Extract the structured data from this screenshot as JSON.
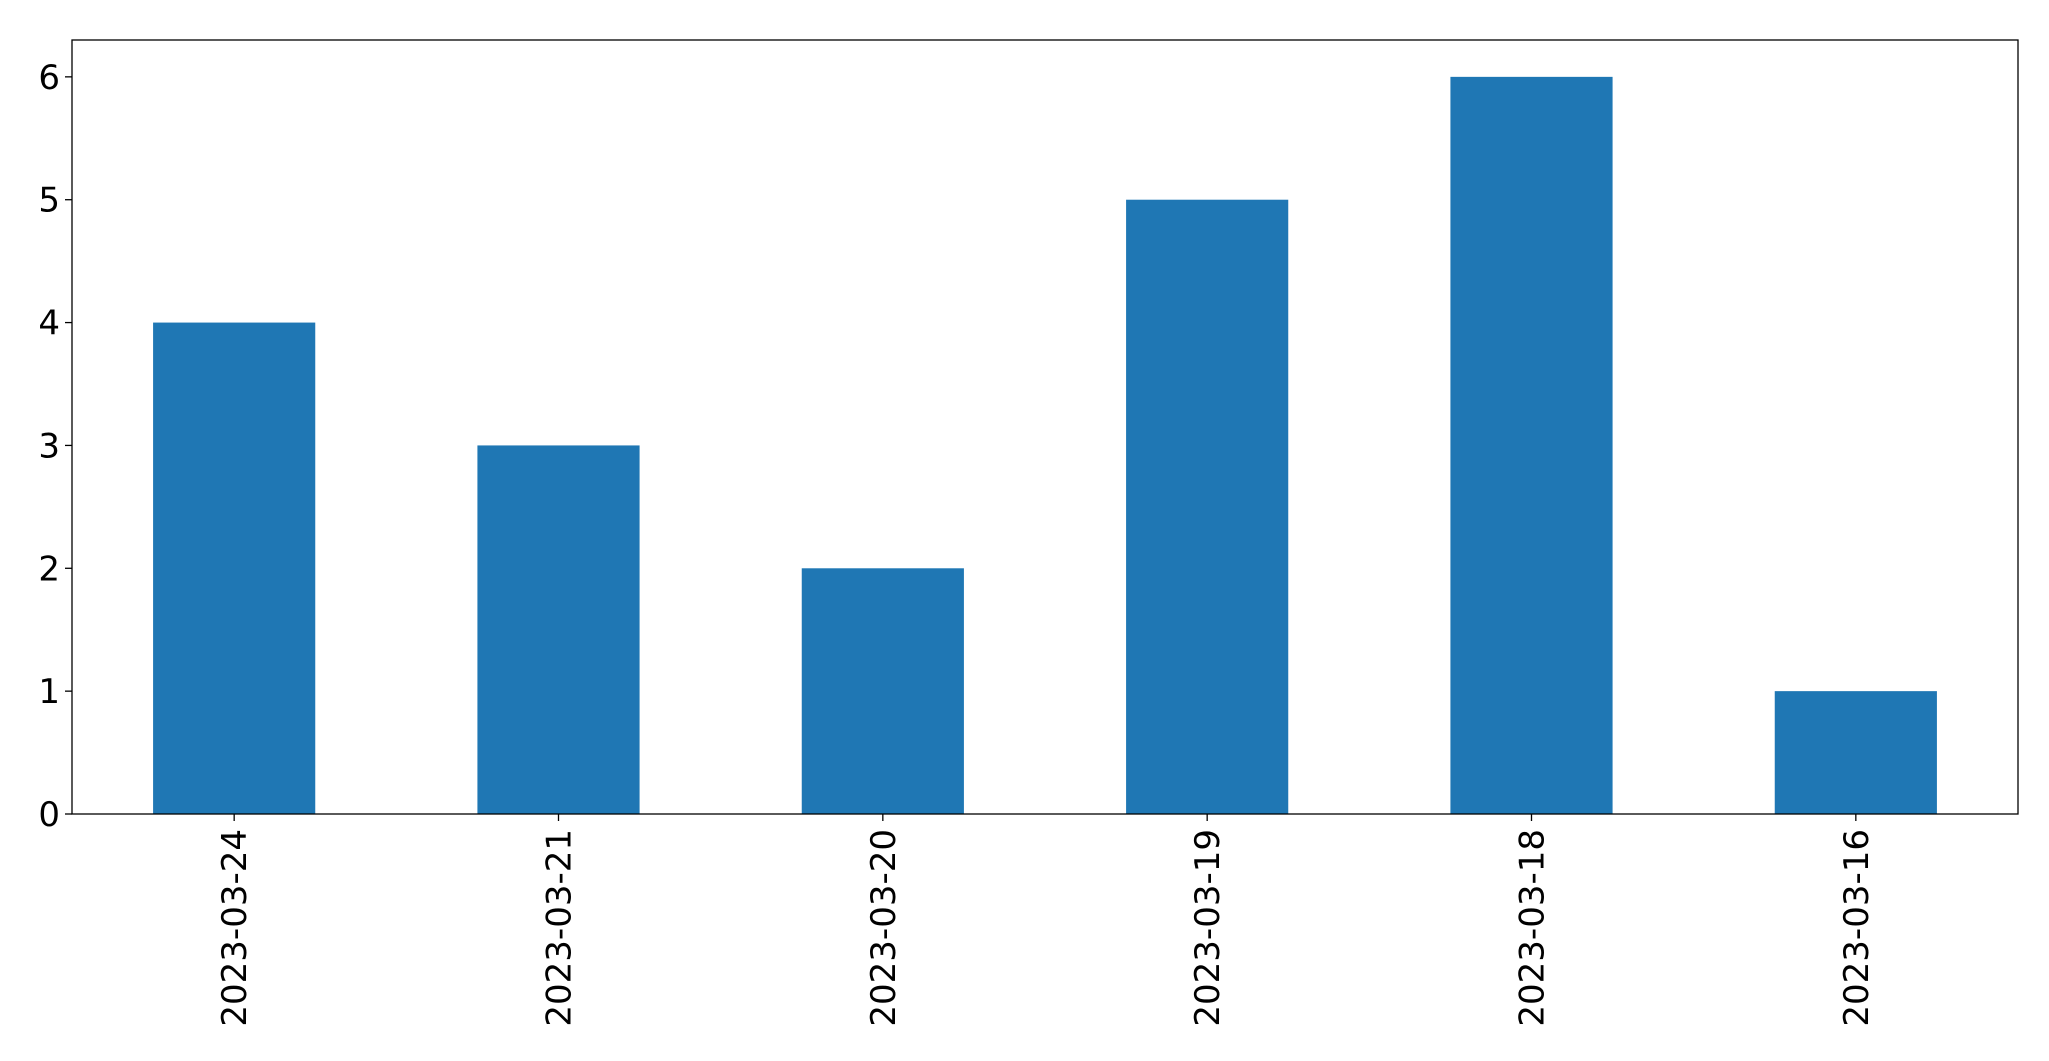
{
  "chart_data": {
    "type": "bar",
    "categories": [
      "2023-03-24",
      "2023-03-21",
      "2023-03-20",
      "2023-03-19",
      "2023-03-18",
      "2023-03-16"
    ],
    "values": [
      4,
      3,
      2,
      5,
      6,
      1
    ],
    "yticks": [
      "0",
      "1",
      "2",
      "3",
      "4",
      "5",
      "6"
    ],
    "ylim": [
      0,
      6.3
    ],
    "title": "",
    "xlabel": "",
    "ylabel": "",
    "grid": false,
    "bar_color": "#1f77b4"
  }
}
